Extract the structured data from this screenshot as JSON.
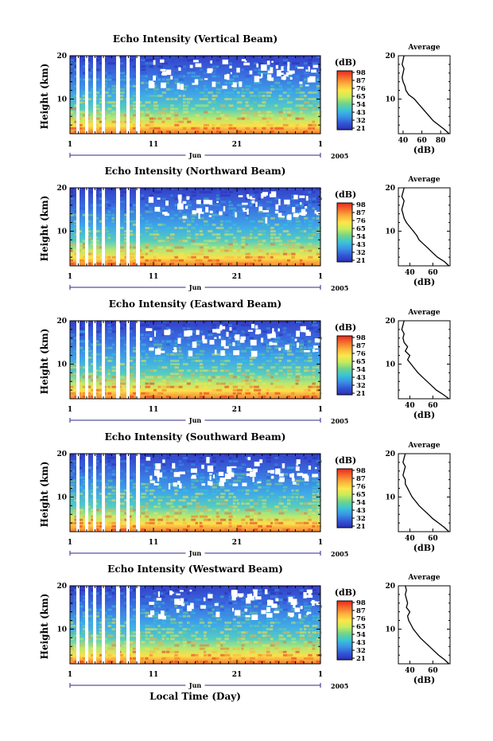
{
  "figure": {
    "x_axis_title": "Local Time (Day)",
    "month_label": "Jun",
    "year_label": "2005"
  },
  "colorbar": {
    "unit": "(dB)",
    "tick_labels": [
      "98",
      "87",
      "76",
      "65",
      "54",
      "43",
      "32",
      "21"
    ],
    "colors": [
      "#e8281e",
      "#f46d2c",
      "#fcb13d",
      "#fde64a",
      "#c6ec5e",
      "#70d48a",
      "#3cc4d6",
      "#3a93e6",
      "#3357d6",
      "#2b2fb4"
    ]
  },
  "chart_data": [
    {
      "type": "heatmap",
      "title": "Echo Intensity (Vertical Beam)",
      "ylabel": "Height (km)",
      "x_tick_labels": [
        "1",
        "11",
        "21",
        "1"
      ],
      "y_tick_labels": [
        "10",
        "20"
      ],
      "xlim": [
        1,
        31
      ],
      "ylim": [
        2,
        20
      ],
      "value_unit": "(dB)",
      "value_range": [
        21,
        98
      ],
      "average_profile": {
        "title": "Average",
        "xlabel": "(dB)",
        "x_tick_labels": [
          "40",
          "60",
          "80"
        ],
        "y_tick_labels": [
          "10",
          "20"
        ],
        "xlim": [
          35,
          90
        ],
        "height_km": [
          2,
          3,
          4,
          5,
          6,
          7,
          8,
          9,
          10,
          11,
          12,
          13,
          14,
          15,
          16,
          17,
          18,
          19,
          20
        ],
        "db": [
          89,
          84,
          78,
          72,
          68,
          64,
          60,
          56,
          52,
          46,
          43,
          42,
          40,
          39,
          40,
          41,
          39,
          40,
          41
        ]
      }
    },
    {
      "type": "heatmap",
      "title": "Echo Intensity (Northward Beam)",
      "ylabel": "Height (km)",
      "x_tick_labels": [
        "1",
        "11",
        "21",
        "1"
      ],
      "y_tick_labels": [
        "10",
        "20"
      ],
      "xlim": [
        1,
        31
      ],
      "ylim": [
        2,
        20
      ],
      "value_unit": "(dB)",
      "value_range": [
        21,
        98
      ],
      "average_profile": {
        "title": "Average",
        "xlabel": "(dB)",
        "x_tick_labels": [
          "40",
          "60"
        ],
        "y_tick_labels": [
          "10",
          "20"
        ],
        "xlim": [
          30,
          75
        ],
        "height_km": [
          2,
          3,
          4,
          5,
          6,
          7,
          8,
          9,
          10,
          11,
          12,
          13,
          14,
          15,
          16,
          17,
          18,
          19,
          20
        ],
        "db": [
          74,
          70,
          64,
          60,
          56,
          52,
          48,
          46,
          43,
          40,
          37,
          35,
          34,
          33,
          34,
          35,
          33,
          34,
          35
        ]
      }
    },
    {
      "type": "heatmap",
      "title": "Echo Intensity (Eastward Beam)",
      "ylabel": "Height (km)",
      "x_tick_labels": [
        "1",
        "11",
        "21",
        "1"
      ],
      "y_tick_labels": [
        "10",
        "20"
      ],
      "xlim": [
        1,
        31
      ],
      "ylim": [
        2,
        20
      ],
      "value_unit": "(dB)",
      "value_range": [
        21,
        98
      ],
      "average_profile": {
        "title": "Average",
        "xlabel": "(dB)",
        "x_tick_labels": [
          "40",
          "60"
        ],
        "y_tick_labels": [
          "10",
          "20"
        ],
        "xlim": [
          30,
          75
        ],
        "height_km": [
          2,
          3,
          4,
          5,
          6,
          7,
          8,
          9,
          10,
          11,
          12,
          13,
          14,
          15,
          16,
          17,
          18,
          19,
          20
        ],
        "db": [
          74,
          69,
          63,
          59,
          55,
          51,
          47,
          44,
          41,
          38,
          40,
          36,
          38,
          35,
          34,
          35,
          33,
          34,
          35
        ]
      }
    },
    {
      "type": "heatmap",
      "title": "Echo Intensity (Southward Beam)",
      "ylabel": "Height (km)",
      "x_tick_labels": [
        "1",
        "11",
        "21",
        "1"
      ],
      "y_tick_labels": [
        "10",
        "20"
      ],
      "xlim": [
        1,
        31
      ],
      "ylim": [
        2,
        20
      ],
      "value_unit": "(dB)",
      "value_range": [
        21,
        98
      ],
      "average_profile": {
        "title": "Average",
        "xlabel": "(dB)",
        "x_tick_labels": [
          "40",
          "60"
        ],
        "y_tick_labels": [
          "10",
          "20"
        ],
        "xlim": [
          30,
          75
        ],
        "height_km": [
          2,
          3,
          4,
          5,
          6,
          7,
          8,
          9,
          10,
          11,
          12,
          13,
          14,
          15,
          16,
          17,
          18,
          19,
          20
        ],
        "db": [
          74,
          70,
          65,
          60,
          56,
          52,
          48,
          45,
          42,
          40,
          38,
          36,
          36,
          34,
          35,
          36,
          34,
          35,
          36
        ]
      }
    },
    {
      "type": "heatmap",
      "title": "Echo Intensity (Westward Beam)",
      "ylabel": "Height (km)",
      "x_tick_labels": [
        "1",
        "11",
        "21",
        "1"
      ],
      "y_tick_labels": [
        "10",
        "20"
      ],
      "xlim": [
        1,
        31
      ],
      "ylim": [
        2,
        20
      ],
      "value_unit": "(dB)",
      "value_range": [
        21,
        98
      ],
      "average_profile": {
        "title": "Average",
        "xlabel": "(dB)",
        "x_tick_labels": [
          "40",
          "60"
        ],
        "y_tick_labels": [
          "10",
          "20"
        ],
        "xlim": [
          30,
          75
        ],
        "height_km": [
          2,
          3,
          4,
          5,
          6,
          7,
          8,
          9,
          10,
          11,
          12,
          13,
          14,
          15,
          16,
          17,
          18,
          19,
          20
        ],
        "db": [
          74,
          70,
          65,
          61,
          57,
          53,
          49,
          46,
          43,
          41,
          39,
          38,
          40,
          37,
          38,
          37,
          36,
          37,
          36
        ]
      }
    }
  ]
}
